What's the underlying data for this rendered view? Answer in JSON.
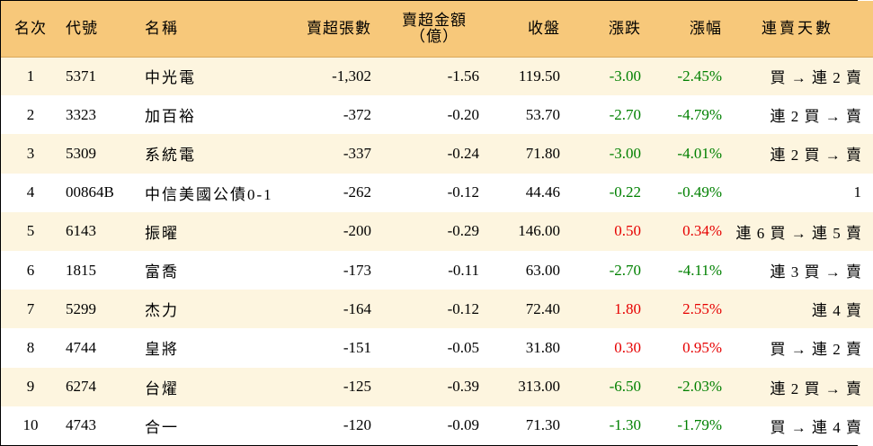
{
  "headers": {
    "rank": "名次",
    "code": "代號",
    "name": "名稱",
    "volume": "賣超張數",
    "amount_line1": "賣超金額",
    "amount_line2": "（億）",
    "close": "收盤",
    "change": "漲跌",
    "pct": "漲幅",
    "days": "連賣天數"
  },
  "colors": {
    "header_bg": "#f7c87a",
    "odd_row_bg": "#fdf5df",
    "down": "#008000",
    "up": "#e60000"
  },
  "rows": [
    {
      "rank": "1",
      "code": "5371",
      "name": "中光電",
      "volume": "-1,302",
      "amount": "-1.56",
      "close": "119.50",
      "change": "-3.00",
      "pct": "-2.45%",
      "days": "買 → 連 2 賣",
      "dir": "neg"
    },
    {
      "rank": "2",
      "code": "3323",
      "name": "加百裕",
      "volume": "-372",
      "amount": "-0.20",
      "close": "53.70",
      "change": "-2.70",
      "pct": "-4.79%",
      "days": "連 2 買 → 賣",
      "dir": "neg"
    },
    {
      "rank": "3",
      "code": "5309",
      "name": "系統電",
      "volume": "-337",
      "amount": "-0.24",
      "close": "71.80",
      "change": "-3.00",
      "pct": "-4.01%",
      "days": "連 2 買 → 賣",
      "dir": "neg"
    },
    {
      "rank": "4",
      "code": "00864B",
      "name": "中信美國公債0-1",
      "volume": "-262",
      "amount": "-0.12",
      "close": "44.46",
      "change": "-0.22",
      "pct": "-0.49%",
      "days": "1",
      "dir": "neg"
    },
    {
      "rank": "5",
      "code": "6143",
      "name": "振曜",
      "volume": "-200",
      "amount": "-0.29",
      "close": "146.00",
      "change": "0.50",
      "pct": "0.34%",
      "days": "連 6 買 → 連 5 賣",
      "dir": "pos"
    },
    {
      "rank": "6",
      "code": "1815",
      "name": "富喬",
      "volume": "-173",
      "amount": "-0.11",
      "close": "63.00",
      "change": "-2.70",
      "pct": "-4.11%",
      "days": "連 3 買 → 賣",
      "dir": "neg"
    },
    {
      "rank": "7",
      "code": "5299",
      "name": "杰力",
      "volume": "-164",
      "amount": "-0.12",
      "close": "72.40",
      "change": "1.80",
      "pct": "2.55%",
      "days": "連 4 賣",
      "dir": "pos"
    },
    {
      "rank": "8",
      "code": "4744",
      "name": "皇將",
      "volume": "-151",
      "amount": "-0.05",
      "close": "31.80",
      "change": "0.30",
      "pct": "0.95%",
      "days": "買 → 連 2 賣",
      "dir": "pos"
    },
    {
      "rank": "9",
      "code": "6274",
      "name": "台燿",
      "volume": "-125",
      "amount": "-0.39",
      "close": "313.00",
      "change": "-6.50",
      "pct": "-2.03%",
      "days": "連 2 買 → 賣",
      "dir": "neg"
    },
    {
      "rank": "10",
      "code": "4743",
      "name": "合一",
      "volume": "-120",
      "amount": "-0.09",
      "close": "71.30",
      "change": "-1.30",
      "pct": "-1.79%",
      "days": "買 → 連 4 賣",
      "dir": "neg"
    }
  ]
}
